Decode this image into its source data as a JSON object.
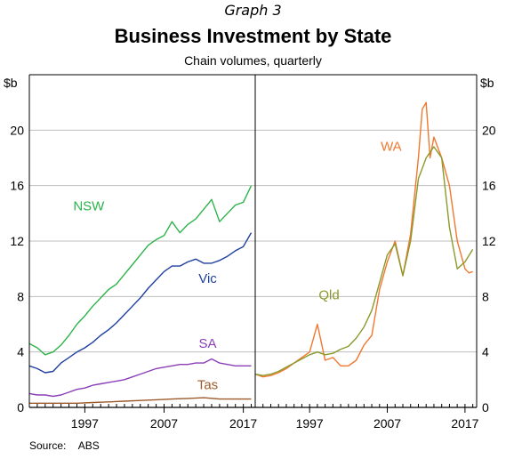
{
  "header": {
    "graph_number": "Graph 3",
    "title": "Business Investment by State",
    "subtitle": "Chain volumes, quarterly"
  },
  "footer": {
    "source_label": "Source:",
    "source_value": "ABS"
  },
  "chart_data": [
    {
      "type": "line",
      "panel": "left",
      "y_unit_label": "$b",
      "ylim": [
        0,
        24
      ],
      "yticks": [
        0,
        4,
        8,
        12,
        16,
        20
      ],
      "xlim": [
        1990,
        2018.5
      ],
      "xticks": [
        1997,
        2007,
        2017
      ],
      "grid": true,
      "legend": "inline labels",
      "series": [
        {
          "name": "NSW",
          "color": "#2db34a",
          "label_at": [
            1997.5,
            14.2
          ],
          "x": [
            1990,
            1991,
            1992,
            1993,
            1994,
            1995,
            1996,
            1997,
            1998,
            1999,
            2000,
            2001,
            2002,
            2003,
            2004,
            2005,
            2006,
            2007,
            2008,
            2009,
            2010,
            2011,
            2012,
            2013,
            2014,
            2015,
            2016,
            2017,
            2018
          ],
          "y": [
            4.6,
            4.3,
            3.8,
            4.0,
            4.5,
            5.2,
            6.0,
            6.6,
            7.3,
            7.9,
            8.5,
            8.9,
            9.6,
            10.3,
            11.0,
            11.7,
            12.1,
            12.4,
            13.4,
            12.6,
            13.2,
            13.6,
            14.3,
            15.0,
            13.4,
            14.0,
            14.6,
            14.8,
            16.0
          ]
        },
        {
          "name": "Vic",
          "color": "#1f3fa0",
          "label_at": [
            2012.5,
            9.0
          ],
          "x": [
            1990,
            1991,
            1992,
            1993,
            1994,
            1995,
            1996,
            1997,
            1998,
            1999,
            2000,
            2001,
            2002,
            2003,
            2004,
            2005,
            2006,
            2007,
            2008,
            2009,
            2010,
            2011,
            2012,
            2013,
            2014,
            2015,
            2016,
            2017,
            2018
          ],
          "y": [
            3.0,
            2.8,
            2.5,
            2.6,
            3.2,
            3.6,
            4.0,
            4.3,
            4.7,
            5.2,
            5.6,
            6.1,
            6.7,
            7.3,
            7.9,
            8.6,
            9.2,
            9.8,
            10.2,
            10.2,
            10.5,
            10.7,
            10.4,
            10.4,
            10.6,
            10.9,
            11.3,
            11.6,
            12.6
          ]
        },
        {
          "name": "SA",
          "color": "#8a3fb8",
          "label_at": [
            2012.5,
            4.3
          ],
          "x": [
            1990,
            1991,
            1992,
            1993,
            1994,
            1995,
            1996,
            1997,
            1998,
            1999,
            2000,
            2001,
            2002,
            2003,
            2004,
            2005,
            2006,
            2007,
            2008,
            2009,
            2010,
            2011,
            2012,
            2013,
            2014,
            2015,
            2016,
            2017,
            2018
          ],
          "y": [
            1.0,
            0.9,
            0.9,
            0.8,
            0.9,
            1.1,
            1.3,
            1.4,
            1.6,
            1.7,
            1.8,
            1.9,
            2.0,
            2.2,
            2.4,
            2.6,
            2.8,
            2.9,
            3.0,
            3.1,
            3.1,
            3.2,
            3.2,
            3.5,
            3.2,
            3.1,
            3.0,
            3.0,
            3.0
          ]
        },
        {
          "name": "Tas",
          "color": "#9c5a2b",
          "label_at": [
            2012.5,
            1.3
          ],
          "x": [
            1990,
            1992,
            1994,
            1996,
            1998,
            2000,
            2002,
            2004,
            2006,
            2008,
            2010,
            2012,
            2014,
            2016,
            2018
          ],
          "y": [
            0.3,
            0.3,
            0.3,
            0.3,
            0.35,
            0.4,
            0.45,
            0.5,
            0.55,
            0.6,
            0.65,
            0.7,
            0.6,
            0.6,
            0.6
          ]
        }
      ]
    },
    {
      "type": "line",
      "panel": "right",
      "y_unit_label": "$b",
      "ylim": [
        0,
        24
      ],
      "yticks": [
        0,
        4,
        8,
        12,
        16,
        20
      ],
      "xlim": [
        1990,
        2018.5
      ],
      "xticks": [
        1997,
        2007,
        2017
      ],
      "grid": true,
      "legend": "inline labels",
      "series": [
        {
          "name": "WA",
          "color": "#f07830",
          "label_at": [
            2007.5,
            18.5
          ],
          "x": [
            1990,
            1991,
            1992,
            1993,
            1994,
            1995,
            1996,
            1997,
            1998,
            1999,
            2000,
            2001,
            2002,
            2003,
            2004,
            2005,
            2006,
            2007,
            2008,
            2009,
            2010,
            2011,
            2011.5,
            2012,
            2012.5,
            2013,
            2014,
            2015,
            2016,
            2017,
            2017.5,
            2018
          ],
          "y": [
            2.4,
            2.2,
            2.3,
            2.5,
            2.8,
            3.2,
            3.6,
            4.0,
            6.0,
            3.4,
            3.6,
            3.0,
            3.0,
            3.4,
            4.5,
            5.2,
            8.5,
            10.5,
            12.0,
            9.5,
            12.5,
            18.0,
            21.5,
            22.0,
            18.0,
            19.5,
            18.0,
            16.0,
            12.0,
            10.0,
            9.7,
            9.8
          ]
        },
        {
          "name": "Qld",
          "color": "#8a9a2a",
          "label_at": [
            1999.5,
            7.8
          ],
          "x": [
            1990,
            1991,
            1992,
            1993,
            1994,
            1995,
            1996,
            1997,
            1998,
            1999,
            2000,
            2001,
            2002,
            2003,
            2004,
            2005,
            2006,
            2007,
            2008,
            2009,
            2010,
            2011,
            2012,
            2013,
            2014,
            2015,
            2016,
            2017,
            2018
          ],
          "y": [
            2.4,
            2.3,
            2.4,
            2.6,
            2.9,
            3.2,
            3.5,
            3.8,
            4.0,
            3.8,
            3.9,
            4.2,
            4.4,
            5.0,
            5.8,
            7.0,
            9.0,
            11.0,
            11.8,
            9.5,
            12.0,
            16.5,
            18.0,
            18.8,
            18.0,
            13.0,
            10.0,
            10.5,
            11.4
          ]
        }
      ]
    }
  ]
}
